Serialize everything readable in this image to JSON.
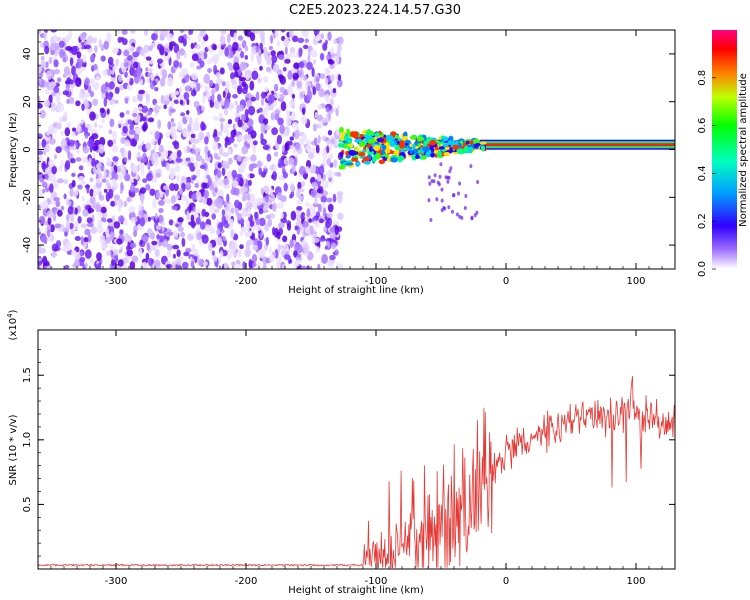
{
  "title": "C2E5.2023.224.14.57.G30",
  "colors": {
    "spectrogram_low": "#8a2be2",
    "snr_line": "#e53935",
    "axis": "#000000"
  },
  "chart_data": [
    {
      "type": "heatmap",
      "title": "C2E5.2023.224.14.57.G30",
      "xlabel": "Height of straight line (km)",
      "ylabel": "Frequency (Hz)",
      "xlim": [
        -360,
        130
      ],
      "ylim": [
        -50,
        50
      ],
      "xticks": [
        -300,
        -200,
        -100,
        0,
        100
      ],
      "yticks": [
        -40,
        -20,
        0,
        20,
        40
      ],
      "noise_region_x": [
        -360,
        -127
      ],
      "band_freq_hz": 2,
      "colorbar": {
        "label": "Normalized spectral amplitude",
        "range": [
          0.0,
          1.0
        ],
        "ticks": [
          "0.0",
          "0.2",
          "0.4",
          "0.6",
          "0.8"
        ],
        "ticks_value": [
          0.0,
          0.2,
          0.4,
          0.6,
          0.8
        ]
      }
    },
    {
      "type": "line",
      "xlabel": "Height of straight line (km)",
      "ylabel": "SNR (10 * v/v)",
      "yscale_label": "(x10",
      "yscale_exp": "4",
      "yscale_close": ")",
      "xlim": [
        -360,
        130
      ],
      "ylim": [
        0,
        1.85
      ],
      "xticks": [
        -300,
        -200,
        -100,
        0,
        100
      ],
      "yticks": [
        "0.5",
        "1.0",
        "1.5"
      ],
      "yticks_value": [
        0.5,
        1.0,
        1.5
      ],
      "series": [
        {
          "x": [
            -360,
            -340,
            -300,
            -250,
            -200,
            -150,
            -110,
            -105,
            -100,
            -90,
            -80,
            -70,
            -60,
            -50,
            -40,
            -30,
            -25,
            -20,
            -15,
            -10,
            -5,
            0,
            10,
            20,
            30,
            40,
            50,
            60,
            70,
            80,
            85,
            90,
            95,
            100,
            110,
            120,
            130
          ],
          "y": [
            0.03,
            0.03,
            0.03,
            0.03,
            0.03,
            0.03,
            0.03,
            0.12,
            0.1,
            0.12,
            0.15,
            0.18,
            0.22,
            0.28,
            0.35,
            0.45,
            0.55,
            0.6,
            0.7,
            0.75,
            0.82,
            0.9,
            0.95,
            1.0,
            1.05,
            1.1,
            1.15,
            1.2,
            1.18,
            1.15,
            1.2,
            1.25,
            1.3,
            1.15,
            1.2,
            1.15,
            1.12
          ]
        }
      ]
    }
  ]
}
